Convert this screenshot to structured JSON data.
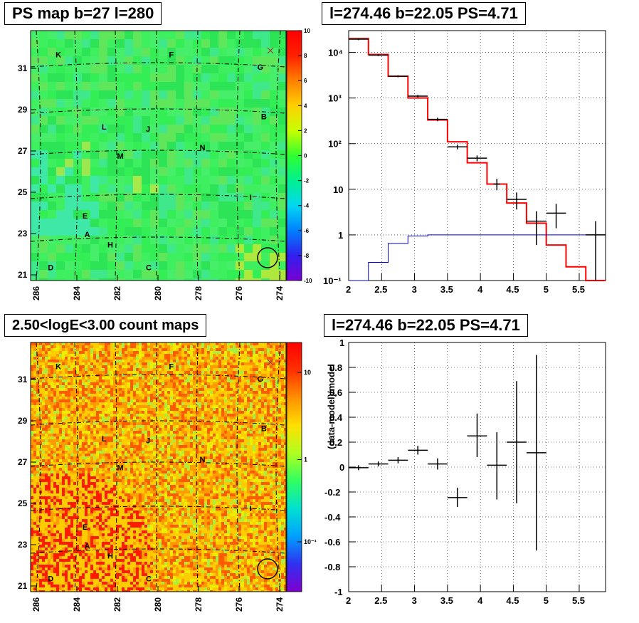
{
  "panels": {
    "ps_map": {
      "title": "PS map b=27 l=280",
      "x_ticks": [
        "286",
        "284",
        "282",
        "280",
        "278",
        "276",
        "274"
      ],
      "y_ticks": [
        "21",
        "23",
        "25",
        "27",
        "29",
        "31"
      ],
      "colorbar_ticks": [
        "10",
        "8",
        "6",
        "4",
        "2",
        "0",
        "-2",
        "-4",
        "-6",
        "-8",
        "-10"
      ],
      "source_labels": [
        "K",
        "F",
        "G",
        "B",
        "L",
        "J",
        "M",
        "N",
        "I",
        "E",
        "A",
        "H",
        "D",
        "C"
      ]
    },
    "count_map": {
      "title": "2.50<logE<3.00 count maps",
      "x_ticks": [
        "286",
        "284",
        "282",
        "280",
        "278",
        "276",
        "274"
      ],
      "y_ticks": [
        "21",
        "23",
        "25",
        "27",
        "29",
        "31"
      ],
      "colorbar_ticks": [
        "10",
        "1",
        "10⁻¹"
      ],
      "source_labels": [
        "K",
        "F",
        "G",
        "B",
        "L",
        "J",
        "M",
        "N",
        "I",
        "E",
        "A",
        "H",
        "D",
        "C"
      ]
    },
    "spectrum": {
      "title": "l=274.46 b=22.05 PS=4.71"
    },
    "residual": {
      "title": "l=274.46 b=22.05 PS=4.71"
    }
  },
  "chart_data": [
    {
      "type": "heatmap",
      "title": "PS map b=27 l=280",
      "xlim": [
        286.9,
        273.6
      ],
      "ylim": [
        20.8,
        32.9
      ],
      "colorbar_range": [
        -10,
        10
      ],
      "description_colors": [
        "#7a00d4",
        "#1428f0",
        "#00c8ff",
        "#2cff6a",
        "#e6ff00",
        "#ff6e00",
        "#ff0000"
      ],
      "sources": [
        {
          "label": "K",
          "l": 285.6,
          "b": 31.6
        },
        {
          "label": "F",
          "l": 279.7,
          "b": 31.6
        },
        {
          "label": "G",
          "l": 275.1,
          "b": 31.0
        },
        {
          "label": "B",
          "l": 274.9,
          "b": 28.6
        },
        {
          "label": "L",
          "l": 283.2,
          "b": 28.1
        },
        {
          "label": "J",
          "l": 280.9,
          "b": 28.0
        },
        {
          "label": "M",
          "l": 282.4,
          "b": 26.7
        },
        {
          "label": "N",
          "l": 278.1,
          "b": 27.1
        },
        {
          "label": "I",
          "l": 275.5,
          "b": 24.7
        },
        {
          "label": "E",
          "l": 284.2,
          "b": 23.8
        },
        {
          "label": "A",
          "l": 284.1,
          "b": 22.9
        },
        {
          "label": "H",
          "l": 282.9,
          "b": 22.4
        },
        {
          "label": "D",
          "l": 286.0,
          "b": 21.3
        },
        {
          "label": "C",
          "l": 280.9,
          "b": 21.3
        }
      ]
    },
    {
      "type": "heatmap",
      "title": "2.50<logE<3.00 count maps",
      "xlim": [
        286.9,
        273.6
      ],
      "ylim": [
        20.8,
        32.9
      ],
      "colorbar_scale": "log"
    },
    {
      "type": "line",
      "title": "l=274.46 b=22.05 PS=4.71",
      "xlim": [
        2,
        5.9
      ],
      "ylim": [
        0.1,
        30000
      ],
      "yscale": "log",
      "grid": true,
      "series": [
        {
          "color": "#ff0000",
          "step_edges": [
            2.0,
            2.3,
            2.6,
            2.9,
            3.2,
            3.5,
            3.8,
            4.1,
            4.4,
            4.7,
            5.0,
            5.3,
            5.6,
            5.9
          ],
          "values": [
            20000,
            9000,
            3000,
            1000,
            330,
            110,
            38,
            13,
            5,
            1.8,
            0.6,
            0.2,
            0.07
          ]
        },
        {
          "color": "#0000cc",
          "step_edges": [
            2.0,
            2.3,
            2.6,
            2.9,
            3.2,
            3.5,
            3.8,
            4.1,
            4.4,
            4.7,
            5.0,
            5.3,
            5.6,
            5.9
          ],
          "values": [
            0.05,
            0.25,
            0.65,
            0.95,
            1,
            1,
            1,
            1,
            1,
            1,
            1,
            1,
            1
          ]
        }
      ],
      "data_points": [
        {
          "x": 2.15,
          "y": 19500,
          "yerr": [
            18500,
            20500
          ],
          "xerr": 0.15
        },
        {
          "x": 2.45,
          "y": 8700,
          "yerr": [
            8300,
            9100
          ],
          "xerr": 0.15
        },
        {
          "x": 2.75,
          "y": 3000,
          "yerr": [
            2850,
            3150
          ],
          "xerr": 0.15
        },
        {
          "x": 3.05,
          "y": 1100,
          "yerr": [
            1030,
            1170
          ],
          "xerr": 0.15
        },
        {
          "x": 3.35,
          "y": 340,
          "yerr": [
            310,
            370
          ],
          "xerr": 0.15
        },
        {
          "x": 3.65,
          "y": 85,
          "yerr": [
            75,
            95
          ],
          "xerr": 0.15
        },
        {
          "x": 3.95,
          "y": 48,
          "yerr": [
            41,
            55
          ],
          "xerr": 0.15
        },
        {
          "x": 4.25,
          "y": 13,
          "yerr": [
            9.5,
            17
          ],
          "xerr": 0.05
        },
        {
          "x": 4.55,
          "y": 6,
          "yerr": [
            3.6,
            8.5
          ],
          "xerr": 0.15
        },
        {
          "x": 4.85,
          "y": 2,
          "yerr": [
            0.6,
            3.3
          ],
          "xerr": 0.15
        },
        {
          "x": 5.15,
          "y": 3,
          "yerr": [
            1.4,
            4.8
          ],
          "xerr": 0.15
        },
        {
          "x": 5.75,
          "y": 1,
          "yerr": [
            0.1,
            2.0
          ],
          "xerr": 0.15
        }
      ]
    },
    {
      "type": "scatter",
      "title": "l=274.46 b=22.05 PS=4.71",
      "ylabel": "(data-model)/model",
      "xlim": [
        2,
        5.9
      ],
      "ylim": [
        -1,
        1
      ],
      "grid": true,
      "x_ticks": [
        "2",
        "2.5",
        "3",
        "3.5",
        "4",
        "4.5",
        "5",
        "5.5"
      ],
      "y_ticks": [
        "-1",
        "-0.8",
        "-0.6",
        "-0.4",
        "-0.2",
        "0",
        "0.2",
        "0.4",
        "0.6",
        "0.8",
        "1"
      ],
      "points": [
        {
          "x": 2.15,
          "y": -0.005,
          "ylo": -0.025,
          "yhi": 0.015
        },
        {
          "x": 2.45,
          "y": 0.025,
          "ylo": 0.005,
          "yhi": 0.045
        },
        {
          "x": 2.75,
          "y": 0.055,
          "ylo": 0.03,
          "yhi": 0.08
        },
        {
          "x": 3.05,
          "y": 0.135,
          "ylo": 0.1,
          "yhi": 0.17
        },
        {
          "x": 3.35,
          "y": 0.025,
          "ylo": -0.02,
          "yhi": 0.07
        },
        {
          "x": 3.65,
          "y": -0.245,
          "ylo": -0.32,
          "yhi": -0.165
        },
        {
          "x": 3.95,
          "y": 0.25,
          "ylo": 0.08,
          "yhi": 0.43
        },
        {
          "x": 4.25,
          "y": 0.015,
          "ylo": -0.26,
          "yhi": 0.28
        },
        {
          "x": 4.55,
          "y": 0.2,
          "ylo": -0.29,
          "yhi": 0.69
        },
        {
          "x": 4.85,
          "y": 0.115,
          "ylo": -0.67,
          "yhi": 0.9
        }
      ]
    }
  ]
}
